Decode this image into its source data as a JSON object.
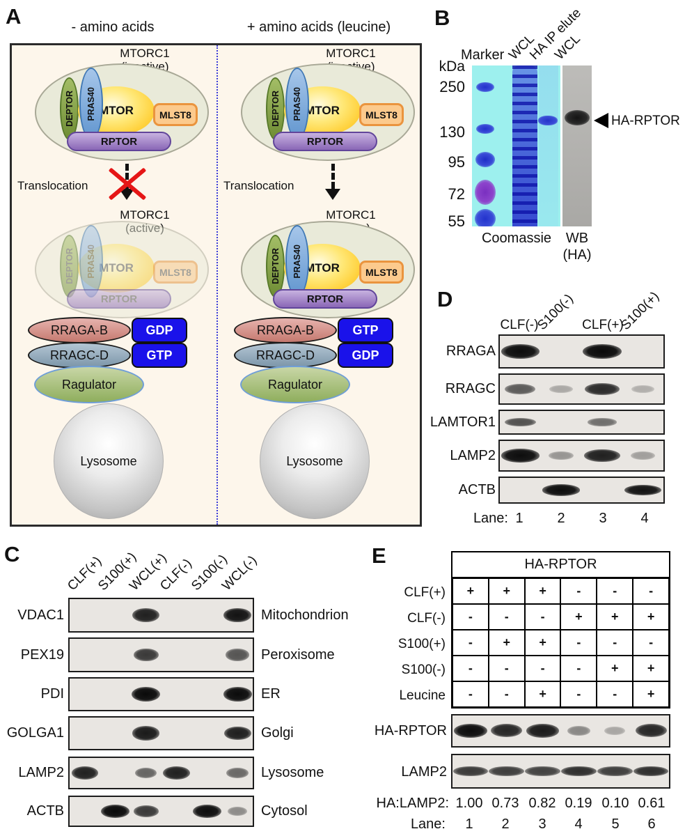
{
  "colors": {
    "panelA_bg": "#fdf6eb",
    "divider_blue": "#3b3bd8",
    "red_x": "#e51616",
    "nucleotide_blue": "#1a12ea",
    "gel_cyan": "#9df0ee",
    "coomassie_blue": "#2b3bd0",
    "marker_purple": "#7a2fc0",
    "blot_bg": "#e9e6e2"
  },
  "panelA": {
    "label": "A",
    "complex": {
      "deptor": "DEPTOR",
      "pras40": "PRAS40",
      "mtor": "MTOR",
      "mlst8": "MLST8",
      "rptor": "RPTOR"
    },
    "left": {
      "header": "- amino acids",
      "inactive_line1": "MTORC1",
      "inactive_line2": "(inactive)",
      "translocation": "Translocation",
      "active_line1": "MTORC1",
      "active_line2": "(active)",
      "raga_label": "RRAGA-B",
      "raga_nt": "GDP",
      "ragc_label": "RRAGC-D",
      "ragc_nt": "GTP",
      "ragulator": "Ragulator",
      "lysosome": "Lysosome"
    },
    "right": {
      "header": "+ amino acids (leucine)",
      "inactive_line1": "MTORC1",
      "inactive_line2": "(inactive)",
      "translocation": "Translocation",
      "active_line1": "MTORC1",
      "active_line2": "(active)",
      "raga_label": "RRAGA-B",
      "raga_nt": "GTP",
      "ragc_label": "RRAGC-D",
      "ragc_nt": "GDP",
      "ragulator": "Ragulator",
      "lysosome": "Lysosome"
    }
  },
  "panelB": {
    "label": "B",
    "kda_title": "kDa",
    "markers": [
      "250",
      "130",
      "95",
      "72",
      "55"
    ],
    "lane_marker": "Marker",
    "lanes_rotated": [
      "WCL",
      "HA IP elute",
      "WCL"
    ],
    "gel_caption": "Coomassie",
    "wb_caption_line1": "WB",
    "wb_caption_line2": "(HA)",
    "band_label": "HA-RPTOR"
  },
  "panelC": {
    "label": "C",
    "lanes": [
      "CLF(+)",
      "S100(+)",
      "WCL(+)",
      "CLF(-)",
      "S100(-)",
      "WCL(-)"
    ],
    "rows": [
      {
        "label": "VDAC1",
        "organelle": "Mitochondrion",
        "bands": [
          0,
          0,
          0.85,
          0,
          0,
          0.92
        ]
      },
      {
        "label": "PEX19",
        "organelle": "Peroxisome",
        "bands": [
          0,
          0,
          0.72,
          0,
          0,
          0.58
        ]
      },
      {
        "label": "PDI",
        "organelle": "ER",
        "bands": [
          0,
          0,
          0.98,
          0,
          0,
          0.96
        ]
      },
      {
        "label": "GOLGA1",
        "organelle": "Golgi",
        "bands": [
          0,
          0,
          0.88,
          0,
          0,
          0.86
        ]
      },
      {
        "label": "LAMP2",
        "organelle": "Lysosome",
        "bands": [
          0.85,
          0,
          0.5,
          0.85,
          0,
          0.48
        ]
      },
      {
        "label": "ACTB",
        "organelle": "Cytosol",
        "bands": [
          0,
          0.98,
          0.72,
          0,
          0.95,
          0.3
        ]
      }
    ]
  },
  "panelD": {
    "label": "D",
    "lanes": [
      "CLF(-)",
      "S100(-)",
      "CLF(+)",
      "S100(+)"
    ],
    "rows": [
      {
        "label": "RRAGA",
        "bands": [
          0.95,
          0,
          1,
          0
        ]
      },
      {
        "label": "RRAGC",
        "bands": [
          0.55,
          0.15,
          0.8,
          0.12
        ]
      },
      {
        "label": "LAMTOR1",
        "bands": [
          0.6,
          0,
          0.45,
          0
        ]
      },
      {
        "label": "LAMP2",
        "bands": [
          0.95,
          0.25,
          0.85,
          0.2
        ]
      },
      {
        "label": "ACTB",
        "bands": [
          0,
          0.95,
          0,
          0.92
        ]
      }
    ],
    "lane_caption": "Lane:",
    "lane_numbers": [
      "1",
      "2",
      "3",
      "4"
    ]
  },
  "panelE": {
    "label": "E",
    "table_title": "HA-RPTOR",
    "conditions": [
      {
        "label": "CLF(+)",
        "cells": [
          "+",
          "+",
          "+",
          "-",
          "-",
          "-"
        ]
      },
      {
        "label": "CLF(-)",
        "cells": [
          "-",
          "-",
          "-",
          "+",
          "+",
          "+"
        ]
      },
      {
        "label": "S100(+)",
        "cells": [
          "-",
          "+",
          "+",
          "-",
          "-",
          "-"
        ]
      },
      {
        "label": "S100(-)",
        "cells": [
          "-",
          "-",
          "-",
          "-",
          "+",
          "+"
        ]
      },
      {
        "label": "Leucine",
        "cells": [
          "-",
          "-",
          "+",
          "-",
          "-",
          "+"
        ]
      }
    ],
    "blots": [
      {
        "label": "HA-RPTOR",
        "bands": [
          0.95,
          0.82,
          0.88,
          0.32,
          0.16,
          0.82
        ]
      },
      {
        "label": "LAMP2",
        "bands": [
          0.72,
          0.7,
          0.68,
          0.78,
          0.7,
          0.78
        ]
      }
    ],
    "ratio_caption": "HA:LAMP2:",
    "ratios": [
      "1.00",
      "0.73",
      "0.82",
      "0.19",
      "0.10",
      "0.61"
    ],
    "lane_caption": "Lane:",
    "lane_numbers": [
      "1",
      "2",
      "3",
      "4",
      "5",
      "6"
    ]
  }
}
